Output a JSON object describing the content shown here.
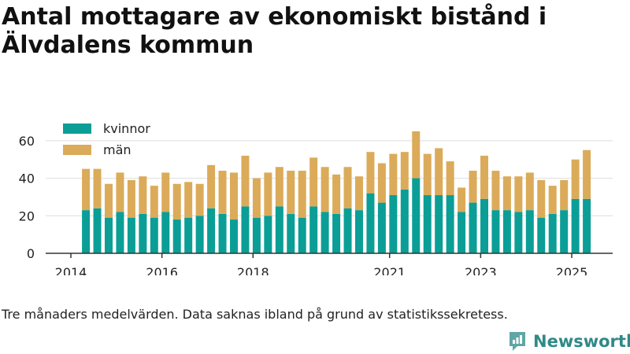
{
  "title": "Antal mottagare av ekonomiskt bistånd i Älvdalens kommun",
  "note": "Tre månaders medelvärden. Data saknas ibland på grund av statistikssekretess.",
  "brand": "Newsworthy",
  "chart_data": {
    "type": "bar",
    "stacked": true,
    "ylim": [
      0,
      70
    ],
    "yticks": [
      0,
      20,
      40,
      60
    ],
    "xlim": [
      2014.0,
      2026.0
    ],
    "xticks": [
      2014,
      2016,
      2018,
      2021,
      2023,
      2025
    ],
    "grid": true,
    "legend_position": "top-left",
    "x": [
      2014.33,
      2014.58,
      2014.83,
      2015.08,
      2015.33,
      2015.58,
      2015.83,
      2016.08,
      2016.33,
      2016.58,
      2016.83,
      2017.08,
      2017.33,
      2017.58,
      2017.83,
      2018.08,
      2018.33,
      2018.58,
      2018.83,
      2019.08,
      2019.33,
      2019.58,
      2019.83,
      2020.08,
      2020.33,
      2020.58,
      2020.83,
      2021.08,
      2021.33,
      2021.58,
      2021.83,
      2022.08,
      2022.33,
      2022.58,
      2022.83,
      2023.08,
      2023.33,
      2023.58,
      2023.83,
      2024.08,
      2024.33,
      2024.58,
      2024.83,
      2025.08,
      2025.33
    ],
    "series": [
      {
        "name": "kvinnor",
        "color": "#0a9e96",
        "values": [
          23,
          24,
          19,
          22,
          19,
          21,
          19,
          22,
          18,
          19,
          20,
          24,
          21,
          18,
          25,
          19,
          20,
          25,
          21,
          19,
          25,
          22,
          21,
          24,
          23,
          32,
          27,
          31,
          34,
          40,
          31,
          31,
          31,
          22,
          27,
          29,
          23,
          23,
          22,
          23,
          19,
          21,
          23,
          29,
          29
        ]
      },
      {
        "name": "män",
        "color": "#dbab5a",
        "values": [
          22,
          21,
          18,
          21,
          20,
          20,
          17,
          21,
          19,
          19,
          17,
          23,
          23,
          25,
          27,
          21,
          23,
          21,
          23,
          25,
          26,
          24,
          21,
          22,
          18,
          22,
          21,
          22,
          20,
          25,
          22,
          25,
          18,
          13,
          17,
          23,
          21,
          18,
          19,
          20,
          20,
          15,
          16,
          21,
          26
        ]
      }
    ]
  }
}
